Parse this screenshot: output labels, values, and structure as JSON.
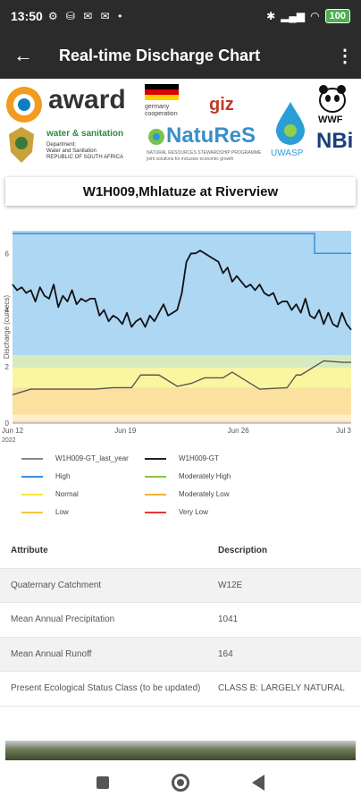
{
  "status_bar": {
    "time": "13:50",
    "battery": "100"
  },
  "app_bar": {
    "title": "Real-time Discharge Chart"
  },
  "logos": {
    "award": "award",
    "water_sanitation": "water & sanitation",
    "dept_line1": "Department:",
    "dept_line2": "Water and Sanitation",
    "dept_line3": "REPUBLIC OF SOUTH AFRICA",
    "germany_line1": "germany",
    "germany_line2": "cooperation",
    "giz": "giz",
    "natures": "NatuReS",
    "natures_sub1": "NATURAL RESOURCES STEWARDSHIP PROGRAMME",
    "natures_sub2": "joint solutions for inclusive economic growth",
    "uwasp": "UWASP",
    "wwf": "WWF",
    "nbi": "NBi"
  },
  "station": {
    "title": "W1H009,Mhlatuze at Riverview"
  },
  "chart_data": {
    "type": "line",
    "ylabel": "Discharge (cumecs)",
    "x_ticks": [
      "Jun 12",
      "Jun 19",
      "Jun 26",
      "Jul 3"
    ],
    "x_tick_year": "2022",
    "y_ticks": [
      "0",
      "2",
      "4",
      "6"
    ],
    "ylim": [
      0,
      6.8
    ],
    "bands": [
      {
        "name": "High",
        "color": "#aed7f3",
        "from": 2.4,
        "to": 6.8
      },
      {
        "name": "Moderately High",
        "color": "#d6ecc0",
        "from": 1.95,
        "to": 2.4
      },
      {
        "name": "Normal",
        "color": "#faf6a0",
        "from": 1.25,
        "to": 1.95
      },
      {
        "name": "Moderately Low",
        "color": "#fbe0a0",
        "from": 0.3,
        "to": 1.25
      },
      {
        "name": "Low",
        "color": "#fdf0c8",
        "from": 0.08,
        "to": 0.3
      },
      {
        "name": "Very Low",
        "color": "#fbd8d8",
        "from": 0,
        "to": 0.08
      }
    ],
    "series": [
      {
        "name": "W1H009-GT_last_year",
        "color": "#555555",
        "x": [
          0,
          2,
          4,
          7,
          9,
          11,
          13,
          14,
          16,
          18,
          19.5,
          21,
          23,
          24,
          25.5,
          27,
          30,
          31,
          31.5,
          34,
          36,
          37
        ],
        "values": [
          1.0,
          1.2,
          1.2,
          1.2,
          1.2,
          1.25,
          1.25,
          1.7,
          1.7,
          1.3,
          1.4,
          1.6,
          1.6,
          1.8,
          1.5,
          1.2,
          1.25,
          1.7,
          1.7,
          2.2,
          2.15,
          2.15
        ]
      },
      {
        "name": "W1H009-GT",
        "color": "#111111",
        "x": [
          0,
          0.5,
          1,
          1.5,
          2,
          2.5,
          3,
          3.5,
          4,
          4.5,
          5,
          5.5,
          6,
          6.5,
          7,
          7.5,
          8,
          8.5,
          9,
          9.5,
          10,
          10.5,
          11,
          11.5,
          12,
          12.5,
          13,
          13.5,
          14,
          14.5,
          15,
          15.5,
          16,
          16.5,
          17,
          17.5,
          18,
          18.5,
          19,
          19.5,
          20,
          20.5,
          21,
          21.5,
          22,
          22.5,
          23,
          23.5,
          24,
          24.5,
          25,
          25.5,
          26,
          26.5,
          27,
          27.5,
          28,
          28.5,
          29,
          29.5,
          30,
          30.5,
          31,
          31.5,
          32,
          32.5,
          33,
          33.5,
          34,
          34.5,
          35,
          35.5,
          36,
          36.5,
          37
        ],
        "values": [
          4.9,
          4.7,
          4.8,
          4.6,
          4.7,
          4.3,
          4.8,
          4.5,
          4.4,
          4.9,
          4.1,
          4.5,
          4.3,
          4.7,
          4.2,
          4.4,
          4.3,
          4.4,
          4.4,
          3.8,
          4.0,
          3.6,
          3.8,
          3.7,
          3.5,
          3.9,
          3.4,
          3.6,
          3.7,
          3.4,
          3.8,
          3.6,
          3.9,
          4.2,
          3.8,
          3.9,
          4.0,
          4.6,
          5.7,
          6.0,
          6.0,
          6.1,
          6.0,
          5.9,
          5.8,
          5.7,
          5.3,
          5.5,
          5.0,
          5.2,
          5.0,
          4.8,
          4.9,
          4.7,
          4.9,
          4.6,
          4.5,
          4.6,
          4.2,
          4.3,
          4.3,
          4.0,
          4.2,
          3.9,
          4.4,
          3.8,
          3.7,
          4.0,
          3.5,
          3.9,
          3.5,
          3.4,
          3.9,
          3.5,
          3.3
        ]
      }
    ],
    "threshold_line": {
      "color": "#3a8fdd",
      "x": [
        0,
        33,
        33,
        37
      ],
      "values": [
        6.7,
        6.7,
        6.0,
        6.0
      ]
    },
    "grid": false
  },
  "legend": [
    {
      "label": "W1H009-GT_last_year",
      "color": "#888888"
    },
    {
      "label": "W1H009-GT",
      "color": "#222222"
    },
    {
      "label": "High",
      "color": "#3a8fdd"
    },
    {
      "label": "Moderately High",
      "color": "#8bc34a"
    },
    {
      "label": "Normal",
      "color": "#f5e83c"
    },
    {
      "label": "Moderately Low",
      "color": "#f2b233"
    },
    {
      "label": "Low",
      "color": "#f5c342"
    },
    {
      "label": "Very Low",
      "color": "#e53935"
    }
  ],
  "table": {
    "headers": [
      "Attribute",
      "Description"
    ],
    "rows": [
      [
        "Quaternary Catchment",
        "W12E"
      ],
      [
        "Mean Annual Precipitation",
        "1041"
      ],
      [
        "Mean Annual Runoff",
        "164"
      ],
      [
        "Present Ecological Status Class (to be updated)",
        "CLASS B: LARGELY NATURAL"
      ]
    ]
  }
}
